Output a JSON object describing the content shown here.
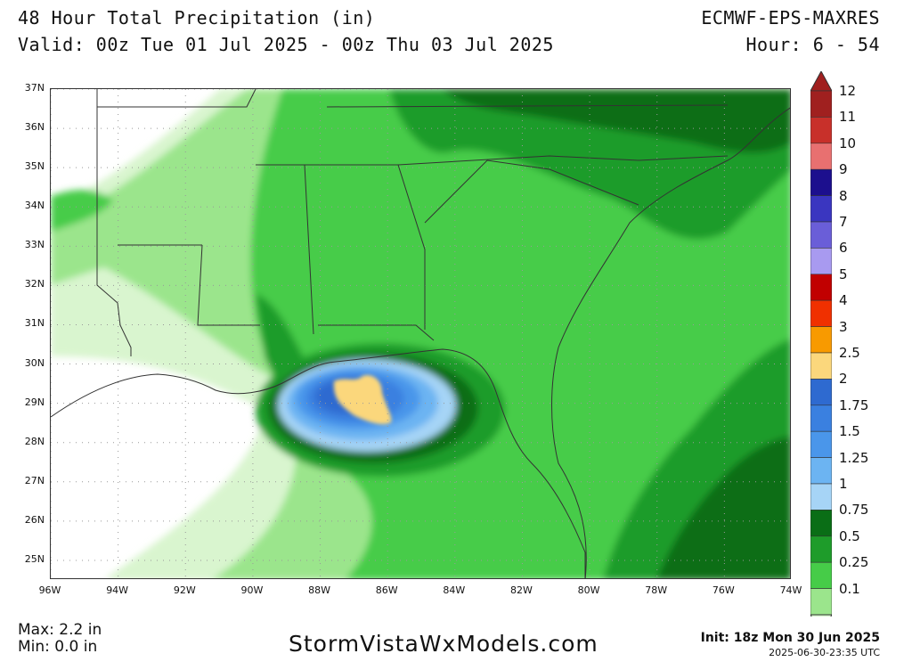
{
  "header": {
    "title": "48 Hour Total Precipitation (in)",
    "valid": "Valid: 00z Tue 01 Jul 2025 - 00z Thu 03 Jul 2025",
    "model": "ECMWF-EPS-MAXRES",
    "hour": "Hour: 6 - 54"
  },
  "map": {
    "region": "Southeastern United States and Gulf of Mexico",
    "lat_labels": [
      "37N",
      "36N",
      "35N",
      "34N",
      "33N",
      "32N",
      "31N",
      "30N",
      "29N",
      "28N",
      "27N",
      "26N",
      "25N"
    ],
    "lon_labels": [
      "96W",
      "94W",
      "92W",
      "90W",
      "88W",
      "86W",
      "84W",
      "82W",
      "80W",
      "78W",
      "76W",
      "74W"
    ],
    "lat_range": [
      24.5,
      37
    ],
    "lon_range": [
      -96,
      -74
    ],
    "max_feature": {
      "label": "2-2.5 in core",
      "center_lat": 29.0,
      "center_lon": -86.3
    }
  },
  "legend": {
    "levels": [
      {
        "label": "12",
        "color": "#a0201f"
      },
      {
        "label": "11",
        "color": "#c8302a"
      },
      {
        "label": "10",
        "color": "#e87070"
      },
      {
        "label": "9",
        "color": "#1c0f8e"
      },
      {
        "label": "8",
        "color": "#3a36c0"
      },
      {
        "label": "7",
        "color": "#6a5ed8"
      },
      {
        "label": "6",
        "color": "#a89af0"
      },
      {
        "label": "5",
        "color": "#c10000"
      },
      {
        "label": "4",
        "color": "#f03000"
      },
      {
        "label": "3",
        "color": "#f89a00"
      },
      {
        "label": "2.5",
        "color": "#fbd77c"
      },
      {
        "label": "2",
        "color": "#2e6ad0"
      },
      {
        "label": "1.75",
        "color": "#3a80e0"
      },
      {
        "label": "1.5",
        "color": "#4a96ea"
      },
      {
        "label": "1.25",
        "color": "#6cb4f2"
      },
      {
        "label": "1",
        "color": "#a6d4f6"
      },
      {
        "label": "0.75",
        "color": "#0a6e16"
      },
      {
        "label": "0.5",
        "color": "#1e9c2a"
      },
      {
        "label": "0.25",
        "color": "#46cc48"
      },
      {
        "label": "0.1",
        "color": "#9be58c"
      }
    ],
    "below_color": "#d9f5cf"
  },
  "footer": {
    "max": "Max: 2.2 in",
    "min": "Min: 0.0 in",
    "site": "StormVistaWxModels.com",
    "init": "Init: 18z Mon 30 Jun 2025",
    "stamp": "2025-06-30-23:35 UTC"
  }
}
